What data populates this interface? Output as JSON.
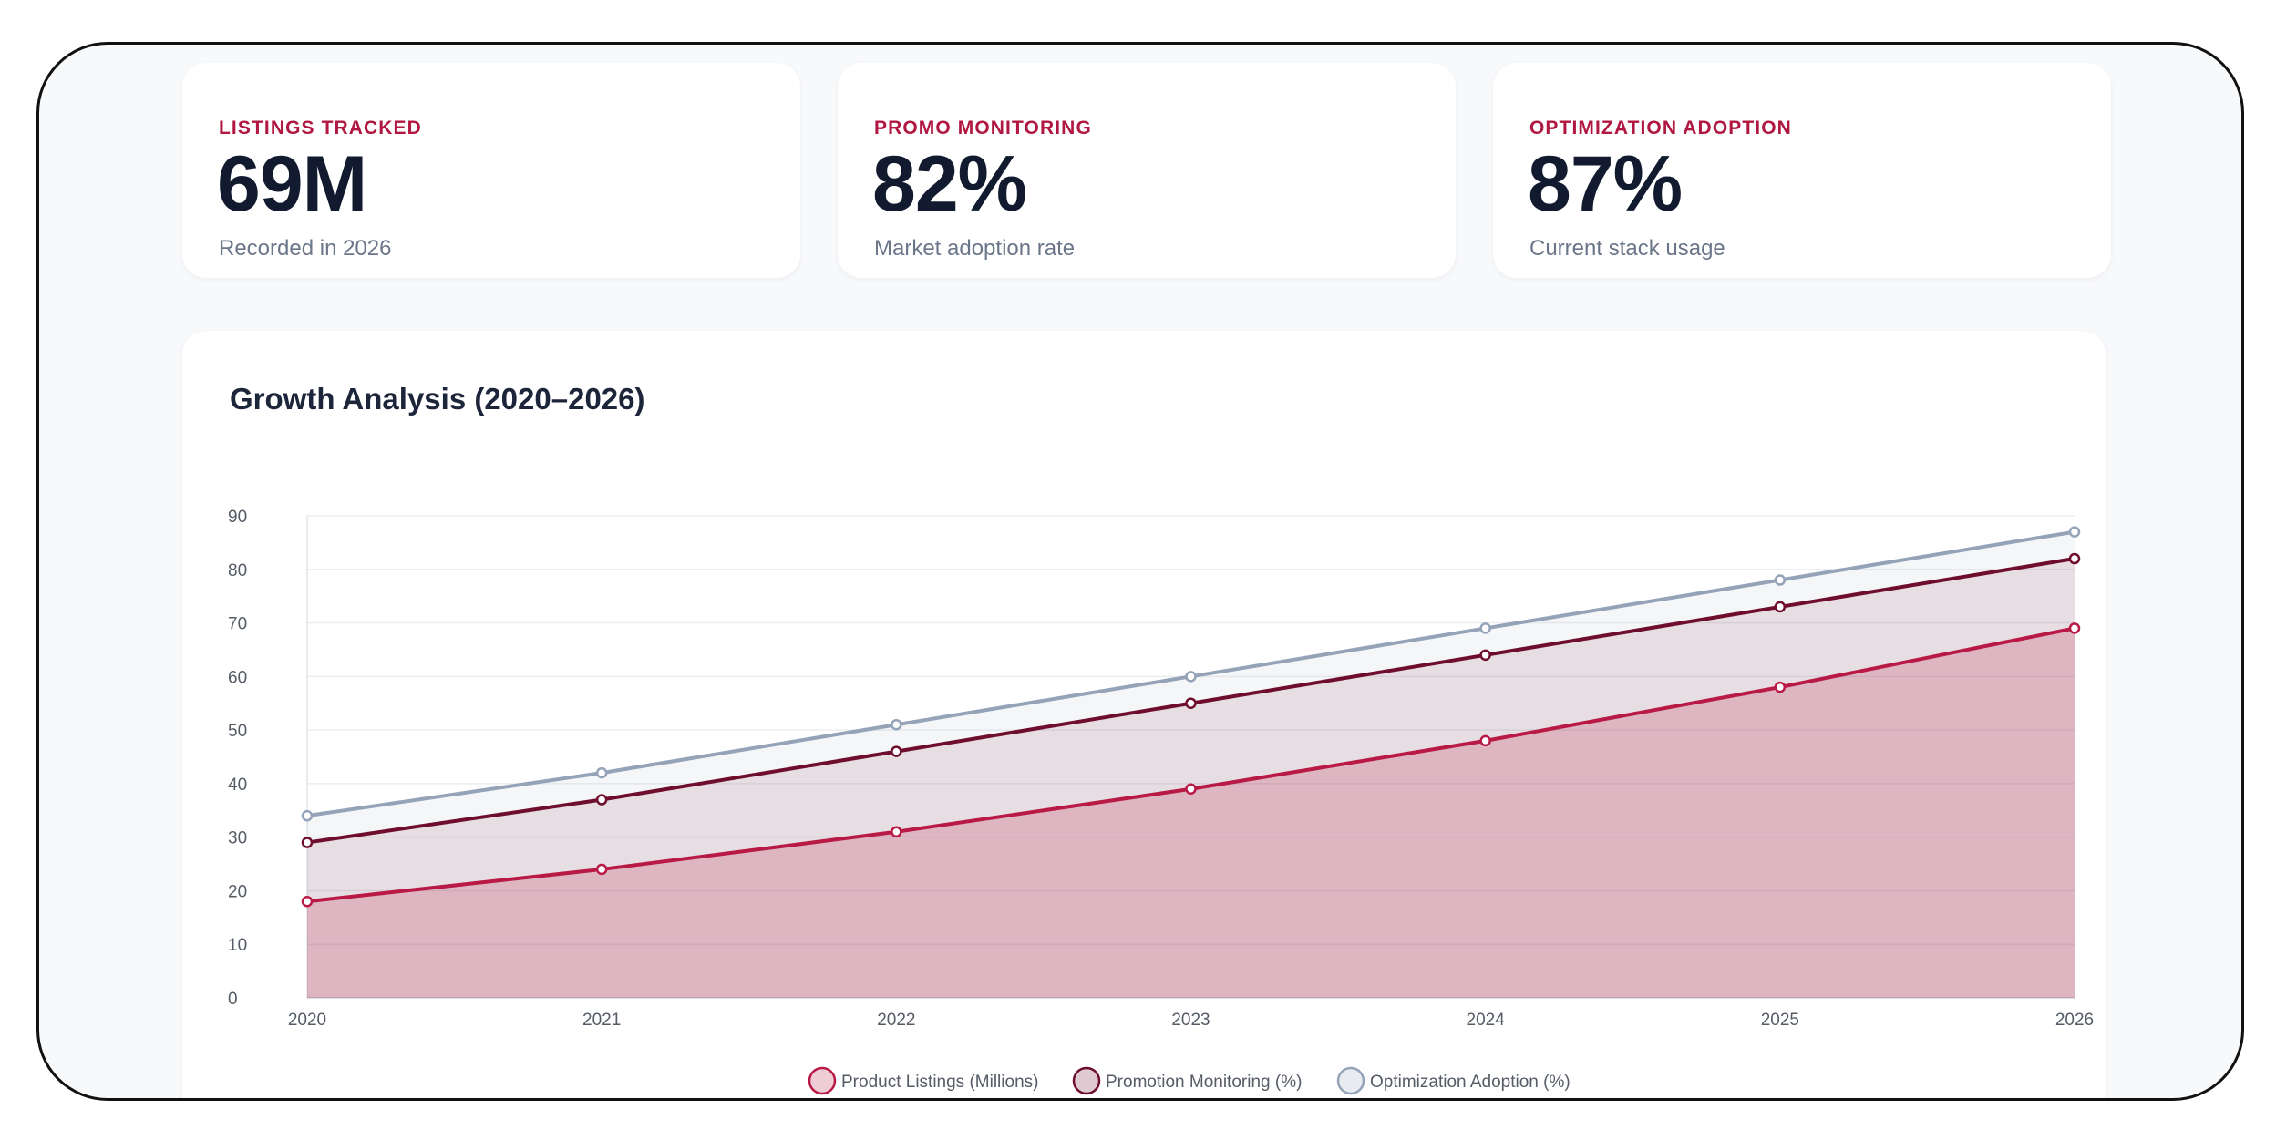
{
  "cards": [
    {
      "label": "LISTINGS TRACKED",
      "value": "69M",
      "sub": "Recorded in 2026"
    },
    {
      "label": "PROMO MONITORING",
      "value": "82%",
      "sub": "Market adoption rate"
    },
    {
      "label": "OPTIMIZATION ADOPTION",
      "value": "87%",
      "sub": "Current stack usage"
    }
  ],
  "chart_title": "Growth Analysis (2020–2026)",
  "chart_data": {
    "type": "area",
    "title": "Growth Analysis (2020–2026)",
    "xlabel": "",
    "ylabel": "",
    "categories": [
      "2020",
      "2021",
      "2022",
      "2023",
      "2024",
      "2025",
      "2026"
    ],
    "ylim": [
      0,
      90
    ],
    "yticks": [
      0,
      10,
      20,
      30,
      40,
      50,
      60,
      70,
      80,
      90
    ],
    "grid": true,
    "legend_position": "bottom",
    "series": [
      {
        "name": "Product Listings (Millions)",
        "values": [
          18,
          24,
          31,
          39,
          48,
          58,
          69
        ],
        "color": "#b81a45",
        "fill": "rgba(184,26,69,0.20)"
      },
      {
        "name": "Promotion Monitoring (%)",
        "values": [
          29,
          37,
          46,
          55,
          64,
          73,
          82
        ],
        "color": "#6e0d2c",
        "fill": "rgba(110,13,44,0.10)"
      },
      {
        "name": "Optimization Adoption (%)",
        "values": [
          34,
          42,
          51,
          60,
          69,
          78,
          87
        ],
        "color": "#94a3b8",
        "fill": "rgba(148,163,184,0.10)"
      }
    ]
  }
}
